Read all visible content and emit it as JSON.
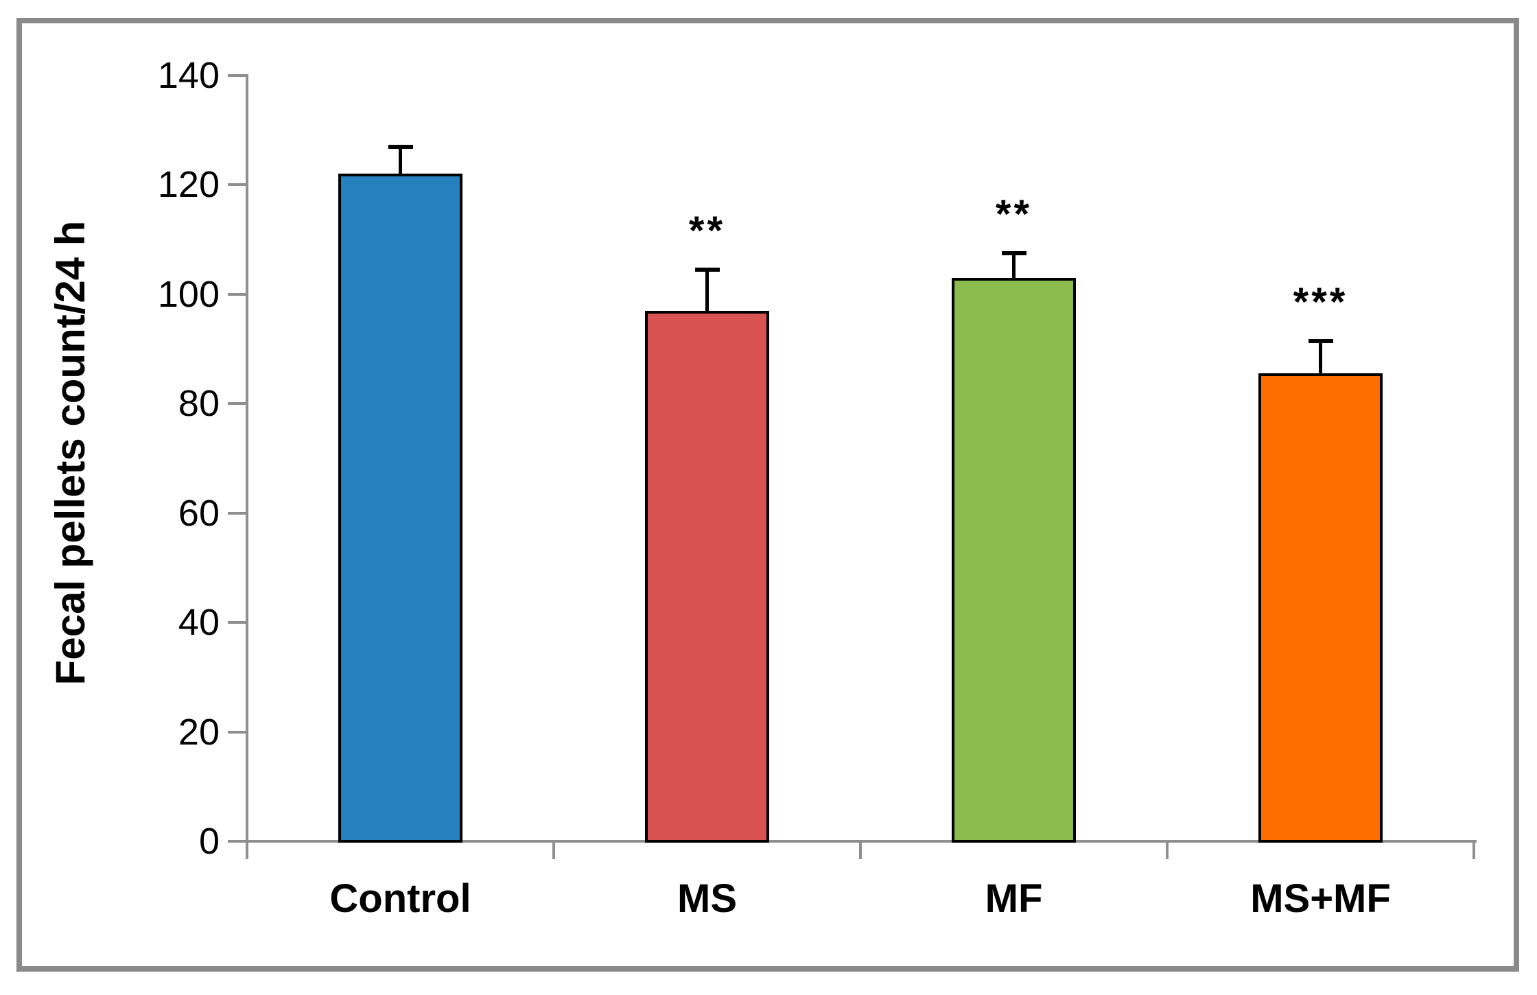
{
  "figure": {
    "frame_color": "#8a8a8a",
    "background": "#ffffff"
  },
  "chart_data": {
    "type": "bar",
    "title": "",
    "xlabel": "",
    "ylabel": "Fecal pellets count/24 h",
    "categories": [
      "Control",
      "MS",
      "MF",
      "MS+MF"
    ],
    "values": [
      122,
      97,
      103,
      85.5
    ],
    "errors": [
      5,
      7.5,
      4.5,
      6
    ],
    "significance": [
      "",
      "**",
      "**",
      "***"
    ],
    "bar_colors": [
      "#2580BE",
      "#D95252",
      "#8CBC4E",
      "#FF6D01"
    ],
    "bar_border_color": "#000000",
    "error_bar_color": "#000000",
    "axis_color": "#8f8f8f",
    "text_color": "#000000",
    "ylim": [
      0,
      140
    ],
    "ytick_step": 20,
    "yticks": [
      0,
      20,
      40,
      60,
      80,
      100,
      120,
      140
    ],
    "grid": false,
    "legend": "none"
  }
}
